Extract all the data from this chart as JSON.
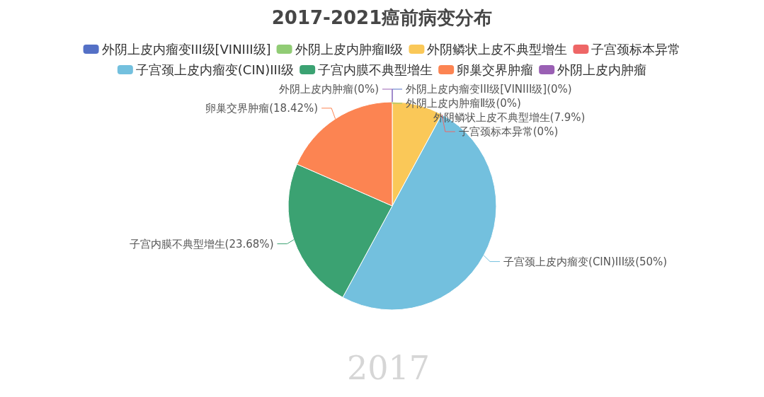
{
  "chart_data": {
    "type": "pie",
    "title": "2017-2021癌前病变分布",
    "categories": [
      "外阴上皮内瘤变III级[VINIII级]",
      "外阴上皮内肿瘤Ⅱ级",
      "外阴鳞状上皮不典型增生",
      "子宫颈标本异常",
      "子宫颈上皮内瘤变(CIN)III级",
      "子宫内膜不典型增生",
      "卵巢交界肿瘤",
      "外阴上皮内肿瘤"
    ],
    "values": [
      0,
      0,
      7.9,
      0,
      50,
      23.68,
      18.42,
      0
    ],
    "colors": [
      "#5470c6",
      "#91cc75",
      "#fac858",
      "#ee6666",
      "#73c0de",
      "#3ba272",
      "#fc8452",
      "#9a60b4"
    ],
    "value_labels": [
      "(0%)",
      "(0%)",
      "(7.9%)",
      "(0%)",
      "(50%)",
      "(23.68%)",
      "(18.42%)",
      "(0%)"
    ],
    "legend": "top",
    "annotations": [
      "2017"
    ]
  }
}
